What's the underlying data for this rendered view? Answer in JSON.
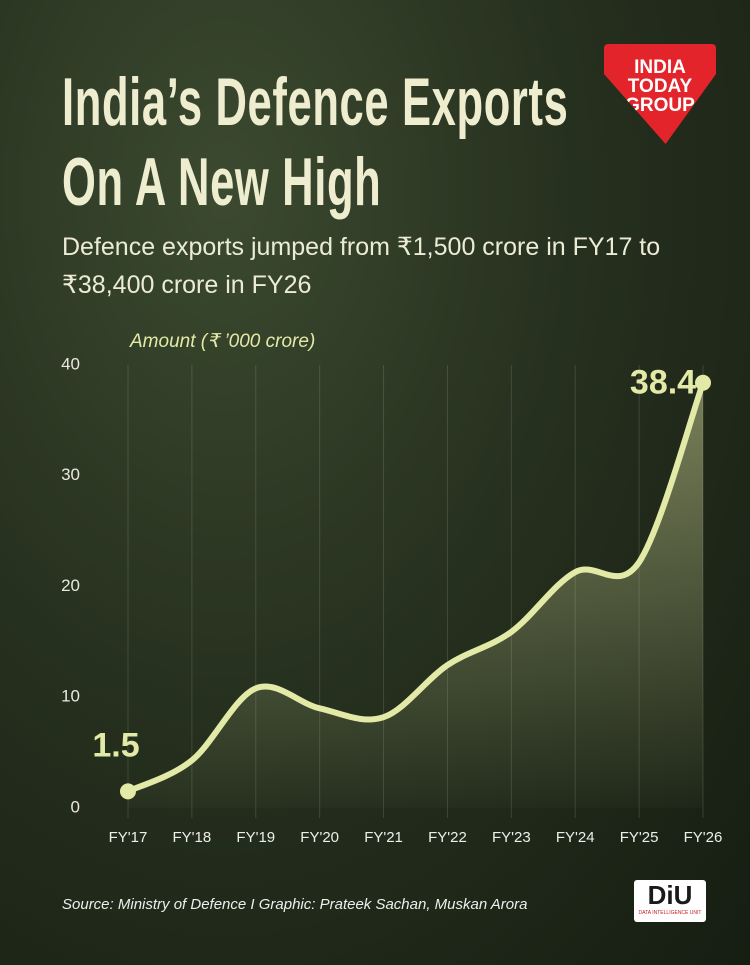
{
  "chart_data": {
    "type": "line",
    "title": "India’s Defence Exports On A New High",
    "subtitle": "Defence exports jumped from ₹1,500 crore in FY17 to ₹38,400 crore in FY26",
    "y_label": "Amount (₹ ’000 crore)",
    "categories": [
      "FY'17",
      "FY'18",
      "FY'19",
      "FY'20",
      "FY'21",
      "FY'22",
      "FY'23",
      "FY'24",
      "FY'25",
      "FY'26"
    ],
    "values": [
      1.5,
      4.3,
      10.8,
      9.0,
      8.2,
      12.9,
      15.9,
      21.3,
      22.2,
      38.4
    ],
    "color": "#e3e9a6",
    "ylim": [
      0,
      40
    ],
    "yticks": [
      0,
      10,
      20,
      30,
      40
    ],
    "grid": true,
    "source": "Source: Ministry of Defence I Graphic: Prateek Sachan, Muskan Arora",
    "logos": {
      "publisher": "INDIA TODAY GROUP",
      "unit": "DiU",
      "unit_sub": "DATA INTELLIGENCE UNIT"
    }
  }
}
